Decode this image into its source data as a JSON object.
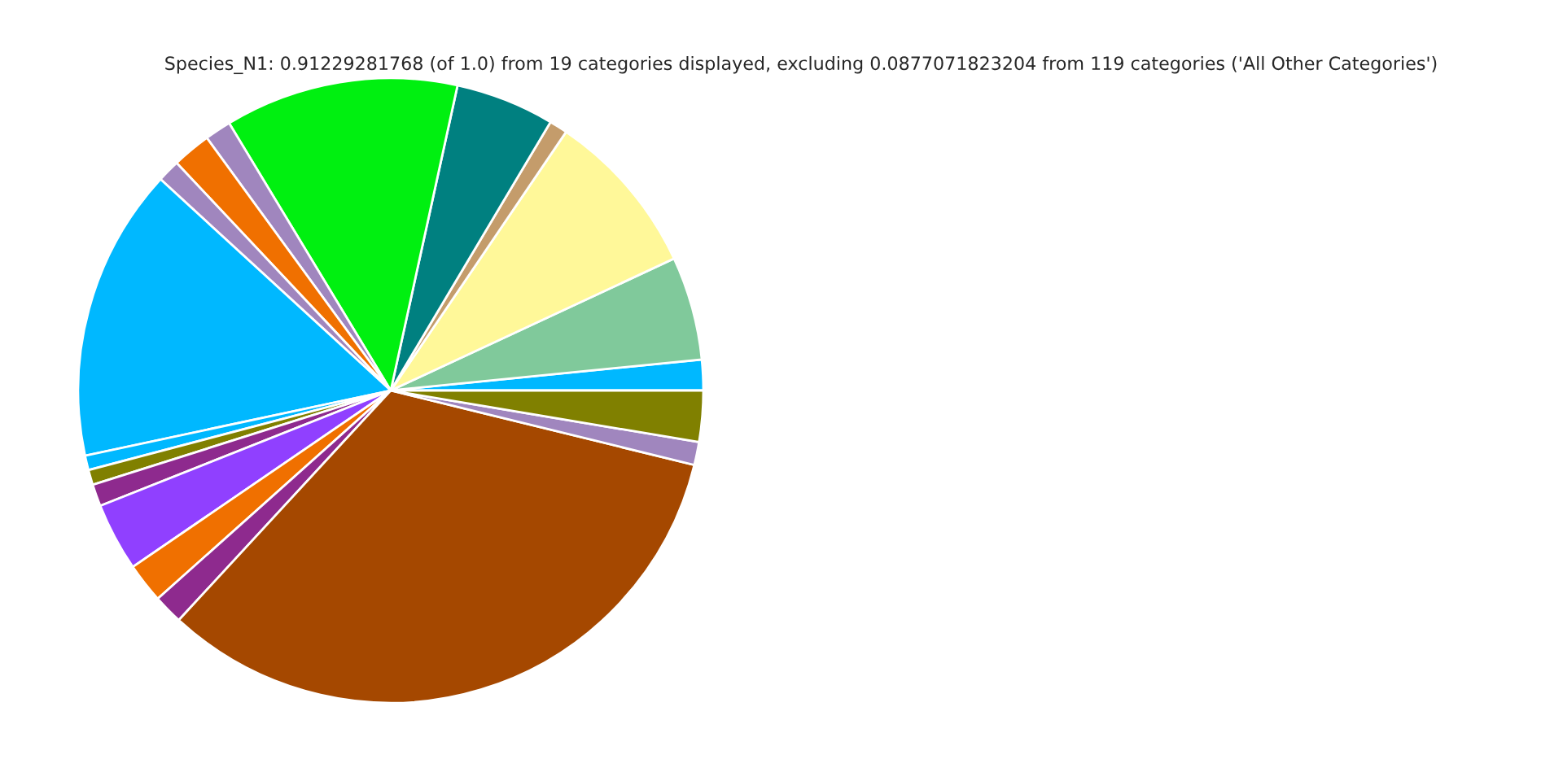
{
  "chart_data": {
    "type": "pie",
    "title": "Species_N1: 0.91229281768 (of 1.0) from 19 categories displayed, excluding 0.0877071823204 from 119 categories ('All Other Categories')",
    "categories": [
      null,
      null,
      null,
      null,
      null,
      null,
      null,
      null,
      null,
      null,
      null,
      null,
      null,
      null,
      null,
      null,
      null,
      null,
      null
    ],
    "values": [
      1.58,
      5.36,
      8.58,
      0.94,
      5.11,
      12.08,
      1.36,
      2.0,
      1.17,
      15.17,
      0.75,
      0.78,
      1.14,
      3.53,
      2.06,
      1.53,
      33.03,
      1.19,
      2.64
    ],
    "colors": [
      "#00b8ff",
      "#80c99b",
      "#fff899",
      "#c49c6b",
      "#008080",
      "#00f010",
      "#a086be",
      "#f07000",
      "#a086be",
      "#00b8ff",
      "#00b8ff",
      "#808000",
      "#8e2a8e",
      "#9040ff",
      "#f07000",
      "#8e2a8e",
      "#a54800",
      "#a086be",
      "#808000"
    ]
  }
}
